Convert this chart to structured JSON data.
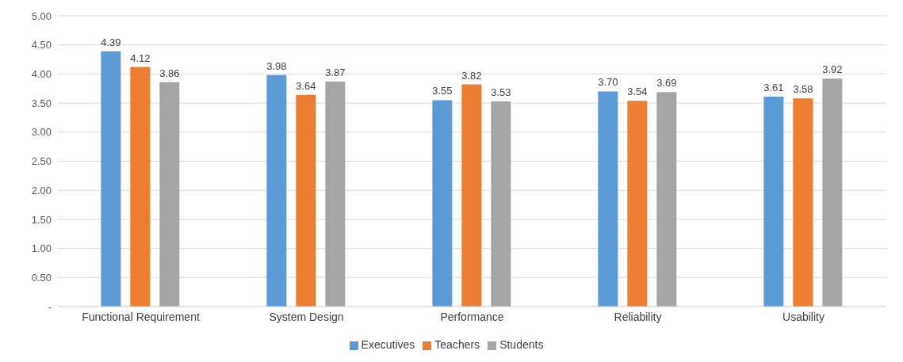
{
  "chart_data": {
    "type": "bar",
    "categories": [
      "Functional Requirement",
      "System Design",
      "Performance",
      "Reliability",
      "Usability"
    ],
    "series": [
      {
        "name": "Executives",
        "color": "#5b9bd5",
        "values": [
          4.39,
          3.98,
          3.55,
          3.7,
          3.61
        ],
        "value_labels": [
          "4.39",
          "3.98",
          "3.55",
          "3.70",
          "3.61"
        ]
      },
      {
        "name": "Teachers",
        "color": "#ed7d31",
        "values": [
          4.12,
          3.64,
          3.82,
          3.54,
          3.58
        ],
        "value_labels": [
          "4.12",
          "3.64",
          "3.82",
          "3.54",
          "3.58"
        ]
      },
      {
        "name": "Students",
        "color": "#a5a5a5",
        "values": [
          3.86,
          3.87,
          3.53,
          3.69,
          3.92
        ],
        "value_labels": [
          "3.86",
          "3.87",
          "3.53",
          "3.69",
          "3.92"
        ]
      }
    ],
    "ylim": [
      0,
      5
    ],
    "yticks": [
      {
        "value": 0,
        "label": "-"
      },
      {
        "value": 0.5,
        "label": "0.50"
      },
      {
        "value": 1,
        "label": "1.00"
      },
      {
        "value": 1.5,
        "label": "1.50"
      },
      {
        "value": 2,
        "label": "2.00"
      },
      {
        "value": 2.5,
        "label": "2.50"
      },
      {
        "value": 3,
        "label": "3.00"
      },
      {
        "value": 3.5,
        "label": "3.50"
      },
      {
        "value": 4,
        "label": "4.00"
      },
      {
        "value": 4.5,
        "label": "4.50"
      },
      {
        "value": 5,
        "label": "5.00"
      }
    ],
    "grid": "y",
    "legend": "bottom"
  }
}
